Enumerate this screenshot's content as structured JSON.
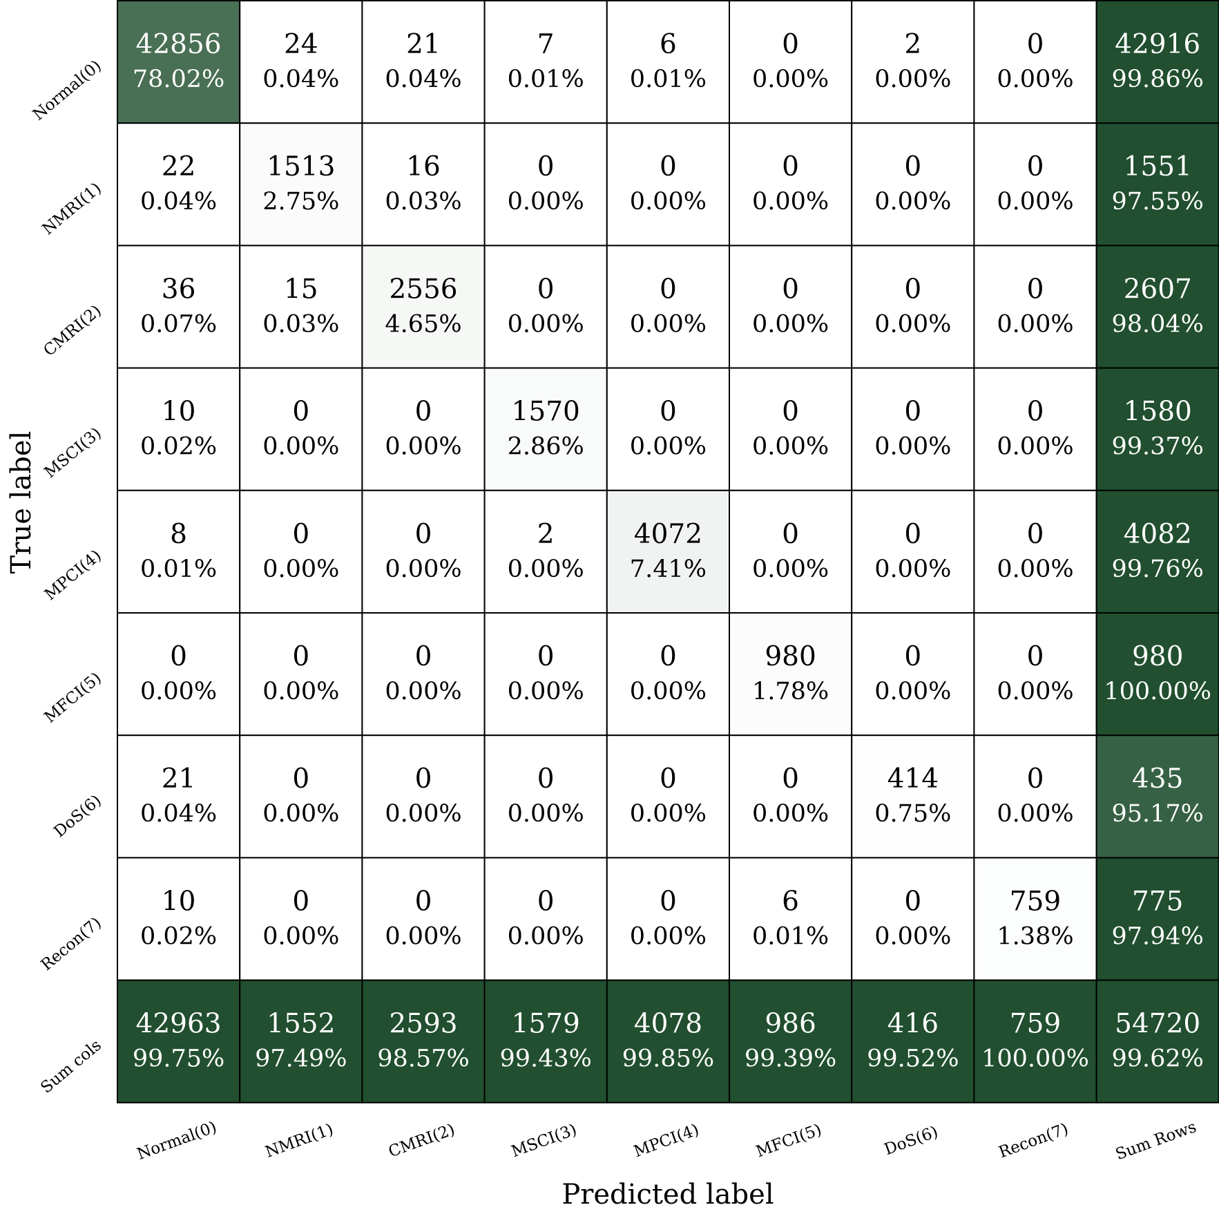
{
  "chart_data": {
    "type": "heatmap",
    "title": "",
    "xlabel": "Predicted label",
    "ylabel": "True label",
    "x_tick_labels": [
      "Normal(0)",
      "NMRI(1)",
      "CMRI(2)",
      "MSCI(3)",
      "MPCI(4)",
      "MFCI(5)",
      "DoS(6)",
      "Recon(7)",
      "Sum Rows"
    ],
    "y_tick_labels": [
      "Normal(0)",
      "NMRI(1)",
      "CMRI(2)",
      "MSCI(3)",
      "MPCI(4)",
      "MFCI(5)",
      "DoS(6)",
      "Recon(7)",
      "Sum cols"
    ],
    "counts": [
      [
        "42856",
        "24",
        "21",
        "7",
        "6",
        "0",
        "2",
        "0",
        "42916"
      ],
      [
        "22",
        "1513",
        "16",
        "0",
        "0",
        "0",
        "0",
        "0",
        "1551"
      ],
      [
        "36",
        "15",
        "2556",
        "0",
        "0",
        "0",
        "0",
        "0",
        "2607"
      ],
      [
        "10",
        "0",
        "0",
        "1570",
        "0",
        "0",
        "0",
        "0",
        "1580"
      ],
      [
        "8",
        "0",
        "0",
        "2",
        "4072",
        "0",
        "0",
        "0",
        "4082"
      ],
      [
        "0",
        "0",
        "0",
        "0",
        "0",
        "980",
        "0",
        "0",
        "980"
      ],
      [
        "21",
        "0",
        "0",
        "0",
        "0",
        "0",
        "414",
        "0",
        "435"
      ],
      [
        "10",
        "0",
        "0",
        "0",
        "0",
        "6",
        "0",
        "759",
        "775"
      ],
      [
        "42963",
        "1552",
        "2593",
        "1579",
        "4078",
        "986",
        "416",
        "759",
        "54720"
      ]
    ],
    "percents": [
      [
        "78.02%",
        "0.04%",
        "0.04%",
        "0.01%",
        "0.01%",
        "0.00%",
        "0.00%",
        "0.00%",
        "99.86%"
      ],
      [
        "0.04%",
        "2.75%",
        "0.03%",
        "0.00%",
        "0.00%",
        "0.00%",
        "0.00%",
        "0.00%",
        "97.55%"
      ],
      [
        "0.07%",
        "0.03%",
        "4.65%",
        "0.00%",
        "0.00%",
        "0.00%",
        "0.00%",
        "0.00%",
        "98.04%"
      ],
      [
        "0.02%",
        "0.00%",
        "0.00%",
        "2.86%",
        "0.00%",
        "0.00%",
        "0.00%",
        "0.00%",
        "99.37%"
      ],
      [
        "0.01%",
        "0.00%",
        "0.00%",
        "0.00%",
        "7.41%",
        "0.00%",
        "0.00%",
        "0.00%",
        "99.76%"
      ],
      [
        "0.00%",
        "0.00%",
        "0.00%",
        "0.00%",
        "0.00%",
        "1.78%",
        "0.00%",
        "0.00%",
        "100.00%"
      ],
      [
        "0.04%",
        "0.00%",
        "0.00%",
        "0.00%",
        "0.00%",
        "0.00%",
        "0.75%",
        "0.00%",
        "95.17%"
      ],
      [
        "0.02%",
        "0.00%",
        "0.00%",
        "0.00%",
        "0.00%",
        "0.01%",
        "0.00%",
        "1.38%",
        "97.94%"
      ],
      [
        "99.75%",
        "97.49%",
        "98.57%",
        "99.43%",
        "99.85%",
        "99.39%",
        "99.52%",
        "100.00%",
        "99.62%"
      ]
    ],
    "grid": true,
    "legend": "none",
    "colors": {
      "dark": "#214f2f",
      "light": "#ffffff",
      "text_dark": "#000000",
      "text_light": "#ffffff",
      "border": "#000000"
    }
  }
}
